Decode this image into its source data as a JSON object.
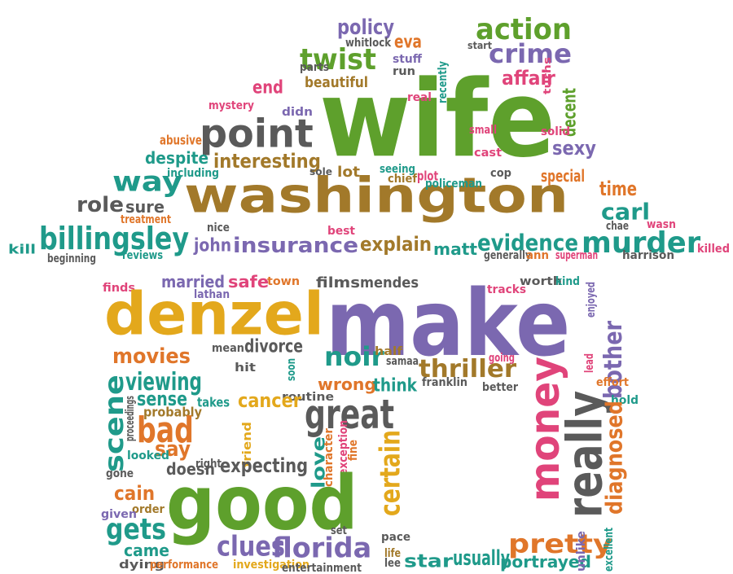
{
  "palette": {
    "green": "#5ea02c",
    "brown": "#a2792a",
    "purple": "#7b68b0",
    "yellow": "#e3a81c",
    "gray": "#5a5a5a",
    "teal": "#1f9a8a",
    "orange": "#e0762a",
    "pink": "#e0447a"
  },
  "words": [
    {
      "t": "wife",
      "c": "green"
    },
    {
      "t": "washington",
      "c": "brown"
    },
    {
      "t": "point",
      "c": "gray"
    },
    {
      "t": "twist",
      "c": "green"
    },
    {
      "t": "action",
      "c": "green"
    },
    {
      "t": "crime",
      "c": "purple"
    },
    {
      "t": "policy",
      "c": "purple"
    },
    {
      "t": "whitlock",
      "c": "gray"
    },
    {
      "t": "eva",
      "c": "orange"
    },
    {
      "t": "stuff",
      "c": "purple"
    },
    {
      "t": "start",
      "c": "gray"
    },
    {
      "t": "parts",
      "c": "gray"
    },
    {
      "t": "run",
      "c": "gray"
    },
    {
      "t": "beautiful",
      "c": "brown"
    },
    {
      "t": "end",
      "c": "pink"
    },
    {
      "t": "recently",
      "c": "teal"
    },
    {
      "t": "real",
      "c": "pink"
    },
    {
      "t": "affair",
      "c": "pink"
    },
    {
      "t": "turns",
      "c": "pink"
    },
    {
      "t": "decent",
      "c": "green"
    },
    {
      "t": "mystery",
      "c": "pink"
    },
    {
      "t": "didn",
      "c": "purple"
    },
    {
      "t": "abusive",
      "c": "orange"
    },
    {
      "t": "despite",
      "c": "teal"
    },
    {
      "t": "interesting",
      "c": "brown"
    },
    {
      "t": "including",
      "c": "teal"
    },
    {
      "t": "sole",
      "c": "gray"
    },
    {
      "t": "lot",
      "c": "brown"
    },
    {
      "t": "seeing",
      "c": "teal"
    },
    {
      "t": "chief",
      "c": "brown"
    },
    {
      "t": "plot",
      "c": "pink"
    },
    {
      "t": "policeman",
      "c": "teal"
    },
    {
      "t": "small",
      "c": "pink"
    },
    {
      "t": "cast",
      "c": "pink"
    },
    {
      "t": "solid",
      "c": "pink"
    },
    {
      "t": "cop",
      "c": "gray"
    },
    {
      "t": "sexy",
      "c": "purple"
    },
    {
      "t": "special",
      "c": "orange"
    },
    {
      "t": "time",
      "c": "orange"
    },
    {
      "t": "way",
      "c": "teal"
    },
    {
      "t": "role",
      "c": "gray"
    },
    {
      "t": "sure",
      "c": "gray"
    },
    {
      "t": "treatment",
      "c": "orange"
    },
    {
      "t": "carl",
      "c": "teal"
    },
    {
      "t": "chae",
      "c": "gray"
    },
    {
      "t": "wasn",
      "c": "pink"
    },
    {
      "t": "billingsley",
      "c": "teal"
    },
    {
      "t": "kill",
      "c": "teal"
    },
    {
      "t": "nice",
      "c": "gray"
    },
    {
      "t": "best",
      "c": "pink"
    },
    {
      "t": "john",
      "c": "purple"
    },
    {
      "t": "insurance",
      "c": "purple"
    },
    {
      "t": "explain",
      "c": "brown"
    },
    {
      "t": "matt",
      "c": "teal"
    },
    {
      "t": "evidence",
      "c": "teal"
    },
    {
      "t": "murder",
      "c": "teal"
    },
    {
      "t": "killed",
      "c": "pink"
    },
    {
      "t": "beginning",
      "c": "gray"
    },
    {
      "t": "reviews",
      "c": "teal"
    },
    {
      "t": "generally",
      "c": "gray"
    },
    {
      "t": "ann",
      "c": "orange"
    },
    {
      "t": "superman",
      "c": "pink"
    },
    {
      "t": "harrison",
      "c": "gray"
    },
    {
      "t": "finds",
      "c": "pink"
    },
    {
      "t": "married",
      "c": "purple"
    },
    {
      "t": "lathan",
      "c": "purple"
    },
    {
      "t": "safe",
      "c": "pink"
    },
    {
      "t": "town",
      "c": "orange"
    },
    {
      "t": "films",
      "c": "gray"
    },
    {
      "t": "mendes",
      "c": "gray"
    },
    {
      "t": "worth",
      "c": "gray"
    },
    {
      "t": "kind",
      "c": "teal"
    },
    {
      "t": "tracks",
      "c": "pink"
    },
    {
      "t": "enjoyed",
      "c": "purple"
    },
    {
      "t": "denzel",
      "c": "yellow"
    },
    {
      "t": "make",
      "c": "purple"
    },
    {
      "t": "movies",
      "c": "orange"
    },
    {
      "t": "mean",
      "c": "gray"
    },
    {
      "t": "divorce",
      "c": "gray"
    },
    {
      "t": "noir",
      "c": "teal"
    },
    {
      "t": "half",
      "c": "brown"
    },
    {
      "t": "samaa",
      "c": "gray"
    },
    {
      "t": "going",
      "c": "pink"
    },
    {
      "t": "lead",
      "c": "pink"
    },
    {
      "t": "thriller",
      "c": "brown"
    },
    {
      "t": "bother",
      "c": "purple"
    },
    {
      "t": "hit",
      "c": "gray"
    },
    {
      "t": "soon",
      "c": "teal"
    },
    {
      "t": "wrong",
      "c": "orange"
    },
    {
      "t": "think",
      "c": "teal"
    },
    {
      "t": "franklin",
      "c": "gray"
    },
    {
      "t": "better",
      "c": "gray"
    },
    {
      "t": "effort",
      "c": "orange"
    },
    {
      "t": "hold",
      "c": "teal"
    },
    {
      "t": "viewing",
      "c": "teal"
    },
    {
      "t": "sense",
      "c": "teal"
    },
    {
      "t": "proceedings",
      "c": "gray"
    },
    {
      "t": "takes",
      "c": "teal"
    },
    {
      "t": "routine",
      "c": "gray"
    },
    {
      "t": "cancer",
      "c": "yellow"
    },
    {
      "t": "great",
      "c": "gray"
    },
    {
      "t": "money",
      "c": "pink"
    },
    {
      "t": "really",
      "c": "gray"
    },
    {
      "t": "diagnosed",
      "c": "orange"
    },
    {
      "t": "scene",
      "c": "teal"
    },
    {
      "t": "probably",
      "c": "brown"
    },
    {
      "t": "bad",
      "c": "orange"
    },
    {
      "t": "say",
      "c": "orange"
    },
    {
      "t": "looked",
      "c": "teal"
    },
    {
      "t": "right",
      "c": "gray"
    },
    {
      "t": "friend",
      "c": "yellow"
    },
    {
      "t": "expecting",
      "c": "gray"
    },
    {
      "t": "love",
      "c": "teal"
    },
    {
      "t": "character",
      "c": "orange"
    },
    {
      "t": "exception",
      "c": "pink"
    },
    {
      "t": "fine",
      "c": "orange"
    },
    {
      "t": "certain",
      "c": "yellow"
    },
    {
      "t": "gone",
      "c": "gray"
    },
    {
      "t": "doesn",
      "c": "gray"
    },
    {
      "t": "cain",
      "c": "orange"
    },
    {
      "t": "order",
      "c": "brown"
    },
    {
      "t": "given",
      "c": "purple"
    },
    {
      "t": "good",
      "c": "green"
    },
    {
      "t": "gets",
      "c": "teal"
    },
    {
      "t": "came",
      "c": "teal"
    },
    {
      "t": "clues",
      "c": "purple"
    },
    {
      "t": "florida",
      "c": "purple"
    },
    {
      "t": "set",
      "c": "gray"
    },
    {
      "t": "pace",
      "c": "gray"
    },
    {
      "t": "life",
      "c": "brown"
    },
    {
      "t": "lee",
      "c": "gray"
    },
    {
      "t": "star",
      "c": "teal"
    },
    {
      "t": "usually",
      "c": "teal"
    },
    {
      "t": "pretty",
      "c": "orange"
    },
    {
      "t": "portrayed",
      "c": "teal"
    },
    {
      "t": "unlike",
      "c": "purple"
    },
    {
      "t": "excellent",
      "c": "teal"
    },
    {
      "t": "dying",
      "c": "gray"
    },
    {
      "t": "performance",
      "c": "orange"
    },
    {
      "t": "investigation",
      "c": "yellow"
    },
    {
      "t": "entertainment",
      "c": "gray"
    }
  ]
}
